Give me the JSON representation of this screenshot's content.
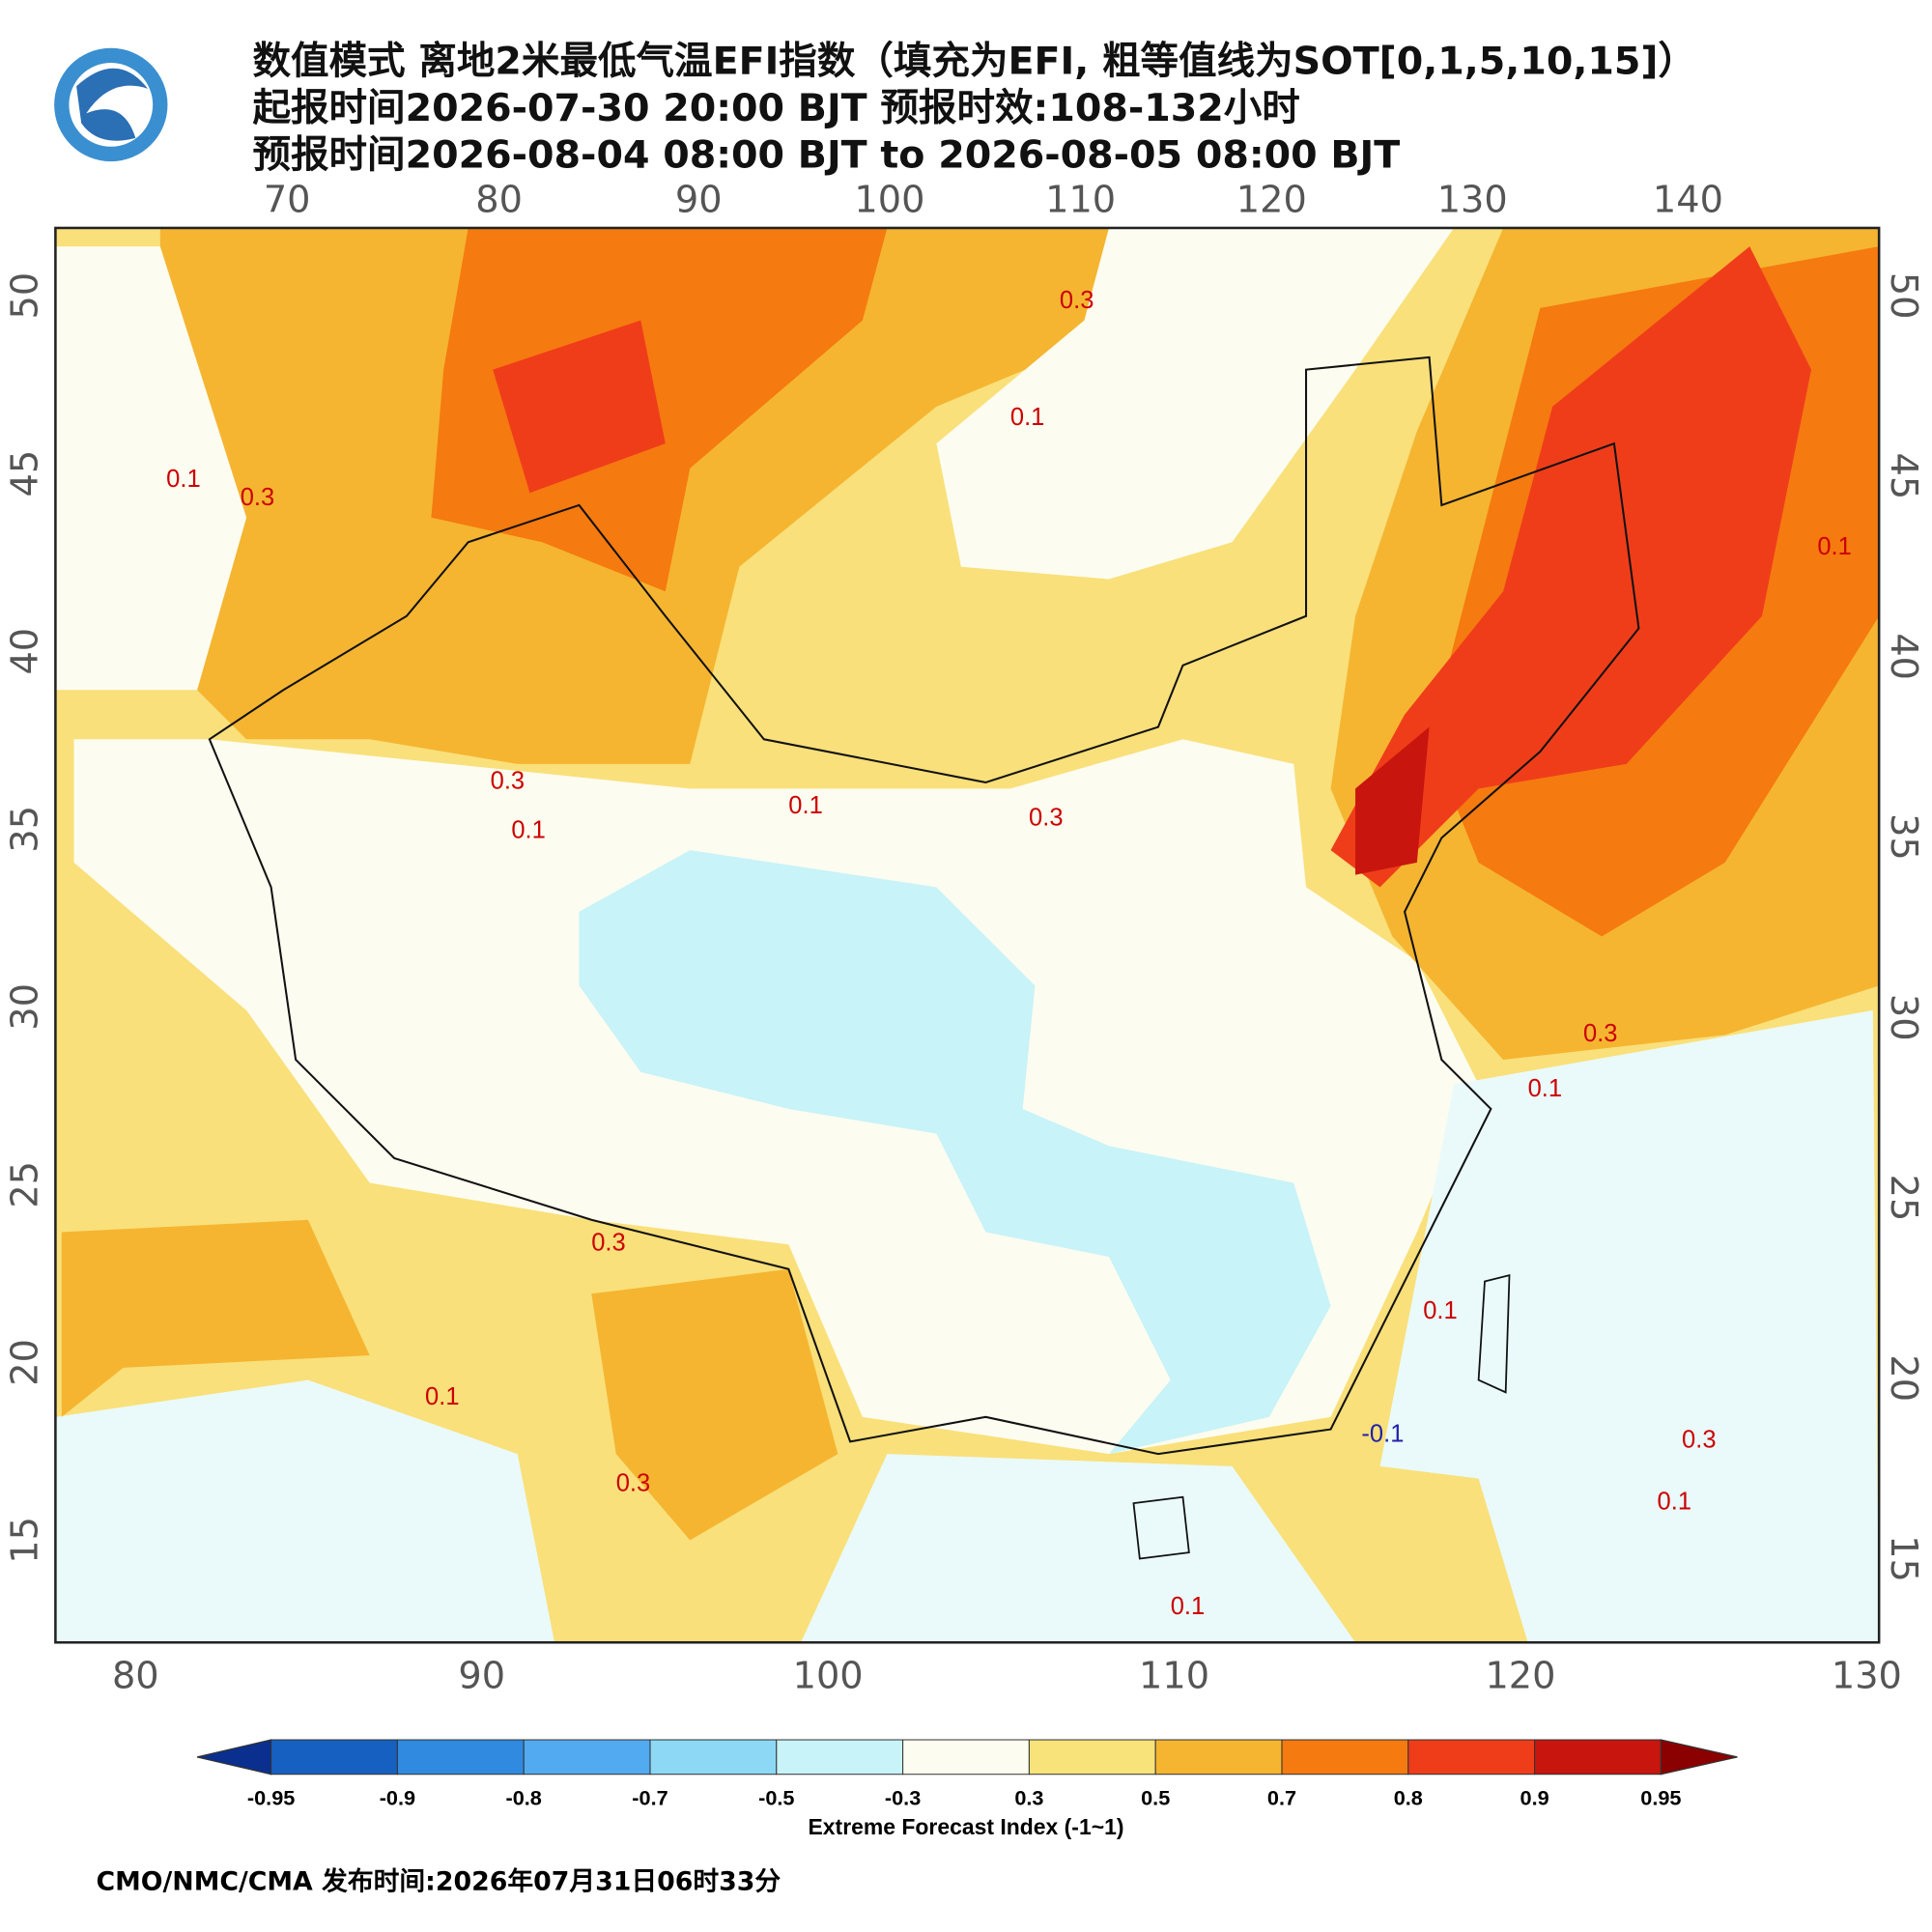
{
  "header": {
    "title_line1": "数值模式 离地2米最低气温EFI指数（填充为EFI, 粗等值线为SOT[0,1,5,10,15]）",
    "title_line2": "起报时间2026-07-30 20:00 BJT 预报时效:108-132小时",
    "title_line3": "预报时间2026-08-04 08:00 BJT to 2026-08-05 08:00 BJT"
  },
  "map": {
    "lon_top": [
      70,
      80,
      90,
      100,
      110,
      120,
      130,
      140
    ],
    "lon_bottom": [
      80,
      90,
      100,
      110,
      120,
      130
    ],
    "lat_left": [
      50,
      45,
      40,
      35,
      30,
      25,
      20,
      15
    ],
    "lat_right": [
      50,
      45,
      40,
      35,
      30,
      25,
      20,
      15
    ],
    "contour_labels": [
      "0.1",
      "0.3",
      "0.1",
      "0.3",
      "0.3",
      "0.1",
      "0.3",
      "0.1",
      "0.3",
      "0.1",
      "0.3",
      "0.1",
      "-0.1",
      "0.1",
      "0.1",
      "0.3",
      "0.1",
      "0.3",
      "0.1"
    ]
  },
  "colorbar": {
    "title": "Extreme Forecast Index (-1~1)",
    "levels": [
      -0.95,
      -0.9,
      -0.8,
      -0.7,
      -0.5,
      -0.3,
      0.3,
      0.5,
      0.7,
      0.8,
      0.9,
      0.95
    ],
    "colors": [
      "#0a2f8f",
      "#1560c0",
      "#2f8ae0",
      "#52aaf0",
      "#8dd8f5",
      "#c8f3f8",
      "#fdfcf0",
      "#f8e27a",
      "#f5b531",
      "#f57a10",
      "#ef3d1a",
      "#c8150e",
      "#8b0000"
    ]
  },
  "footer": {
    "text": "CMO/NMC/CMA 发布时间:2026年07月31日06时33分"
  }
}
